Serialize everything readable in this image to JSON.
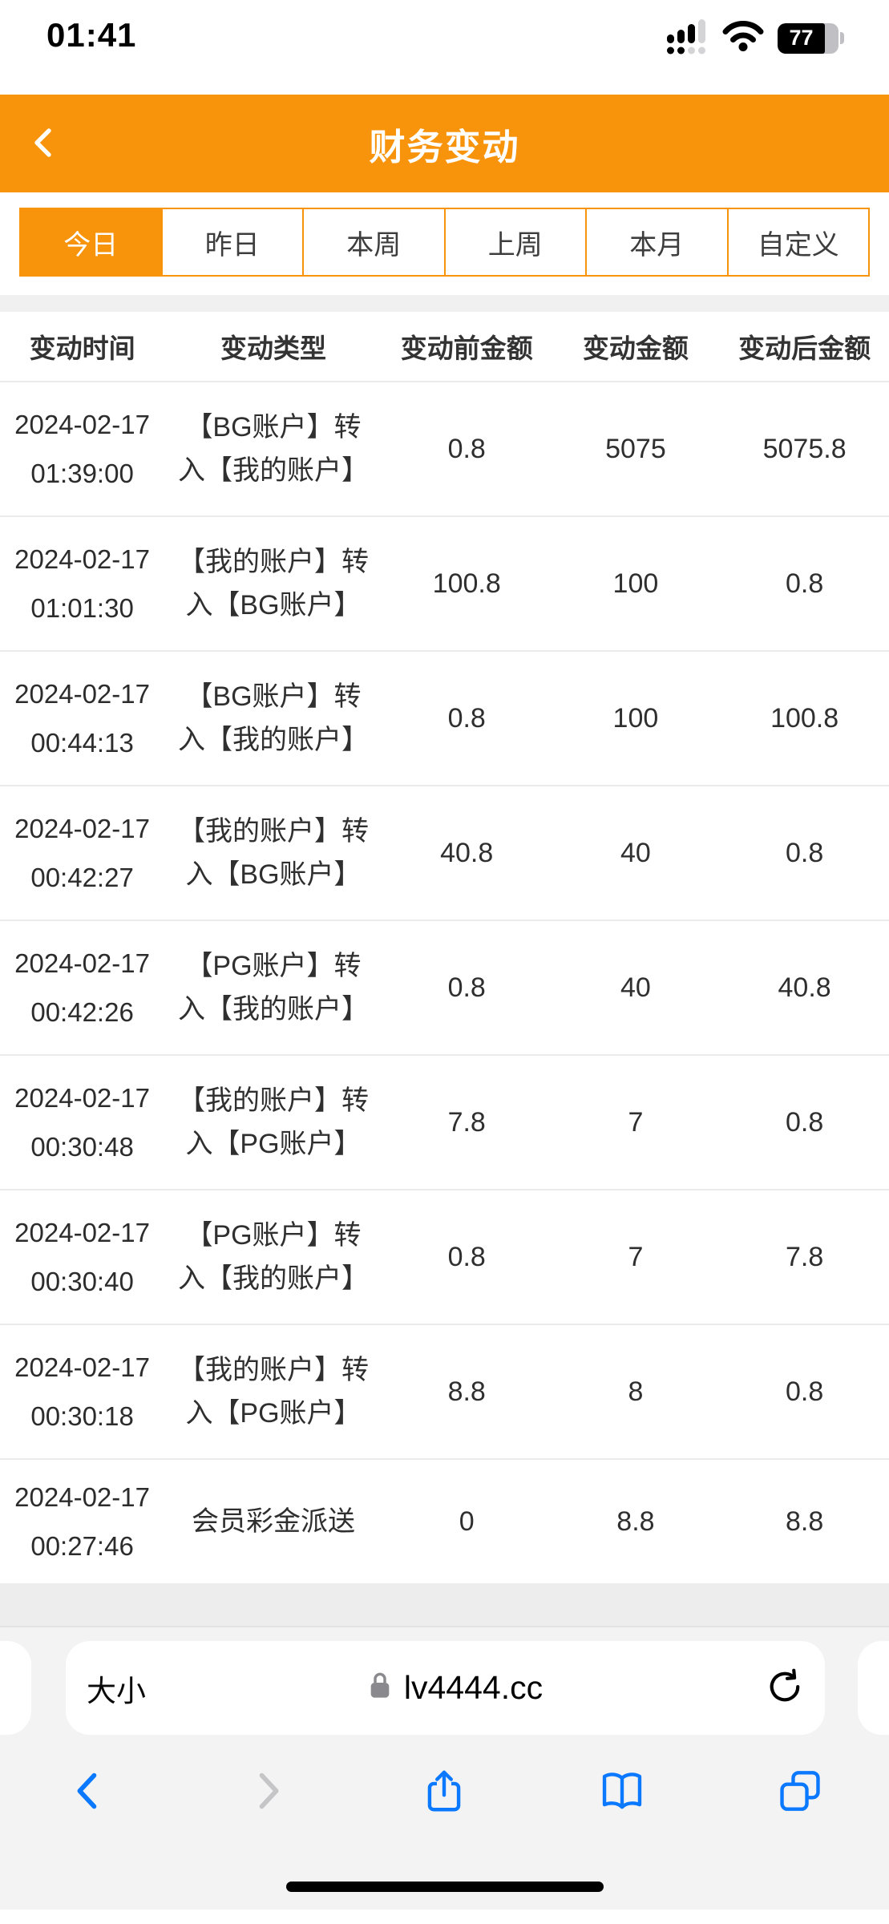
{
  "status_bar": {
    "time": "01:41",
    "battery_percent": "77"
  },
  "header": {
    "title": "财务变动"
  },
  "filter_tabs": {
    "items": [
      {
        "label": "今日",
        "selected": true
      },
      {
        "label": "昨日",
        "selected": false
      },
      {
        "label": "本周",
        "selected": false
      },
      {
        "label": "上周",
        "selected": false
      },
      {
        "label": "本月",
        "selected": false
      },
      {
        "label": "自定义",
        "selected": false
      }
    ]
  },
  "table": {
    "columns": [
      "变动时间",
      "变动类型",
      "变动前金额",
      "变动金额",
      "变动后金额"
    ],
    "rows": [
      {
        "date": "2024-02-17",
        "time": "01:39:00",
        "type": "【BG账户】转入【我的账户】",
        "before": "0.8",
        "amount": "5075",
        "after": "5075.8"
      },
      {
        "date": "2024-02-17",
        "time": "01:01:30",
        "type": "【我的账户】转入【BG账户】",
        "before": "100.8",
        "amount": "100",
        "after": "0.8"
      },
      {
        "date": "2024-02-17",
        "time": "00:44:13",
        "type": "【BG账户】转入【我的账户】",
        "before": "0.8",
        "amount": "100",
        "after": "100.8"
      },
      {
        "date": "2024-02-17",
        "time": "00:42:27",
        "type": "【我的账户】转入【BG账户】",
        "before": "40.8",
        "amount": "40",
        "after": "0.8"
      },
      {
        "date": "2024-02-17",
        "time": "00:42:26",
        "type": "【PG账户】转入【我的账户】",
        "before": "0.8",
        "amount": "40",
        "after": "40.8"
      },
      {
        "date": "2024-02-17",
        "time": "00:30:48",
        "type": "【我的账户】转入【PG账户】",
        "before": "7.8",
        "amount": "7",
        "after": "0.8"
      },
      {
        "date": "2024-02-17",
        "time": "00:30:40",
        "type": "【PG账户】转入【我的账户】",
        "before": "0.8",
        "amount": "7",
        "after": "7.8"
      },
      {
        "date": "2024-02-17",
        "time": "00:30:18",
        "type": "【我的账户】转入【PG账户】",
        "before": "8.8",
        "amount": "8",
        "after": "0.8"
      },
      {
        "date": "2024-02-17",
        "time": "00:27:46",
        "type": "会员彩金派送",
        "before": "0",
        "amount": "8.8",
        "after": "8.8"
      }
    ]
  },
  "browser": {
    "text_size_button": "大小",
    "url": "lv4444.cc"
  },
  "colors": {
    "accent_orange": "#F8940B",
    "ios_blue": "#0b79ff",
    "disabled_gray": "#c5c5c7"
  }
}
